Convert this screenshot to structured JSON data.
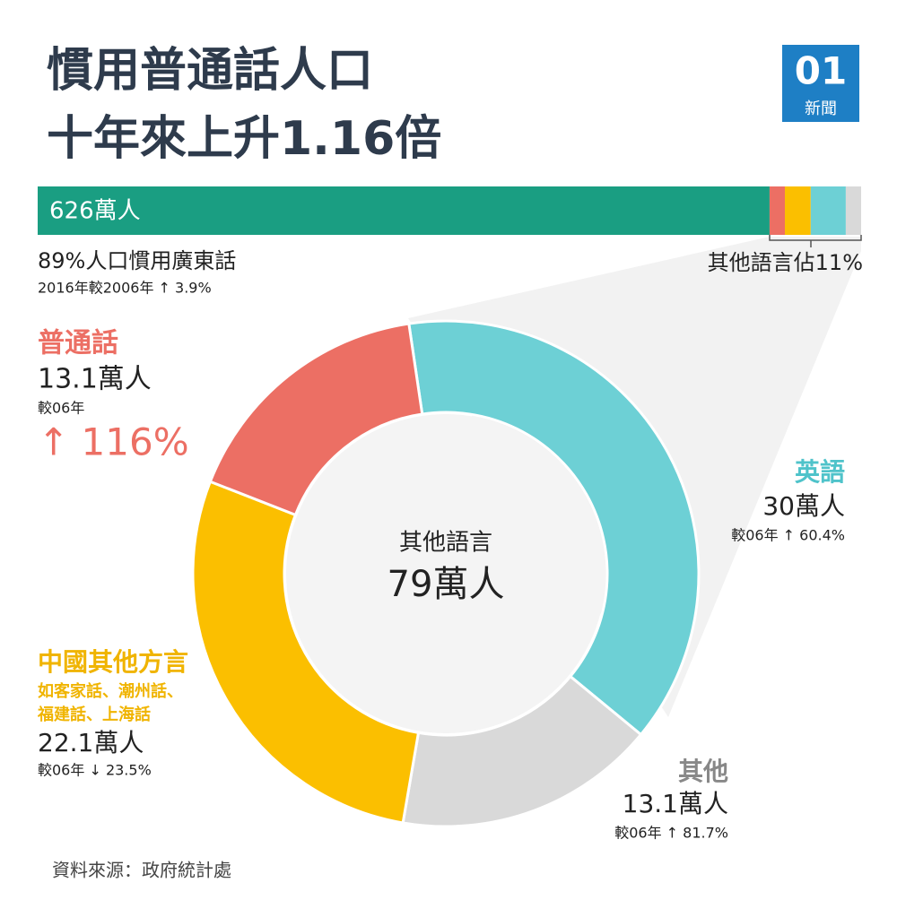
{
  "title": [
    "慣用普通話人口",
    "十年來上升1.16倍"
  ],
  "logo": {
    "mark": "01",
    "name": "新聞"
  },
  "chart_data": [
    {
      "type": "stacked-bar",
      "values": [
        626,
        13.1,
        22.1,
        30,
        13.1
      ],
      "colors": [
        "#1a9e82",
        "#ec6f64",
        "#fbbf00",
        "#6dd0d5",
        "#d9d9d9"
      ],
      "value_labels": [
        "626萬人",
        null,
        null,
        null,
        null
      ],
      "notes": [
        "89%人口慣用廣東話",
        "2016年較2006年 ↑ 3.9%"
      ],
      "bracket_label": "其他語言佔11%"
    },
    {
      "type": "donut",
      "categories": [
        "英語",
        "其他",
        "中國其他方言",
        "普通話"
      ],
      "values": [
        30,
        13.1,
        22.1,
        13.1
      ],
      "value_labels": [
        "30萬人",
        "13.1萬人",
        "22.1萬人",
        "13.1萬人"
      ],
      "colors": [
        "#6dd0d5",
        "#d9d9d9",
        "#fbbf00",
        "#ec6f64"
      ],
      "changes": [
        "較06年 ↑ 60.4%",
        "較06年 ↑ 81.7%",
        "較06年 ↓ 23.5%",
        "較06年"
      ],
      "highlight": "↑ 116%",
      "subnote": [
        "如客家話、潮州話、",
        "福建話、上海話"
      ],
      "center_label": "其他語言",
      "total": 79,
      "total_label": "79萬人"
    }
  ],
  "source": "資料來源：政府統計處"
}
